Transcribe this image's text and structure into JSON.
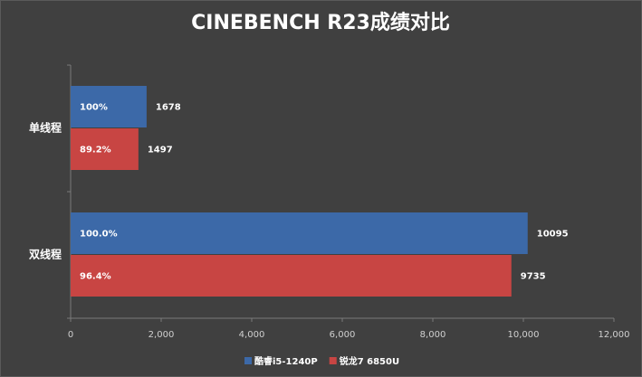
{
  "chart_data": {
    "type": "hbar",
    "title": "CINEBENCH R23成绩对比",
    "categories": [
      "单线程",
      "双线程"
    ],
    "series": [
      {
        "name": "酷睿i5-1240P",
        "color": "#3c69a8",
        "values": [
          1678,
          10095
        ],
        "percent_labels": [
          "100%",
          "100.0%"
        ]
      },
      {
        "name": "锐龙7 6850U",
        "color": "#c84543",
        "values": [
          1497,
          9735
        ],
        "percent_labels": [
          "89.2%",
          "96.4%"
        ]
      }
    ],
    "xlim": [
      0,
      12000
    ],
    "xticks": [
      0,
      {
        "value": 2000,
        "label": "2,000"
      },
      {
        "value": 4000,
        "label": "4,000"
      },
      {
        "value": 6000,
        "label": "6,000"
      },
      {
        "value": 8000,
        "label": "8,000"
      },
      {
        "value": 10000,
        "label": "10,000"
      },
      {
        "value": 12000,
        "label": "12,000"
      }
    ],
    "legend": "bottom"
  }
}
